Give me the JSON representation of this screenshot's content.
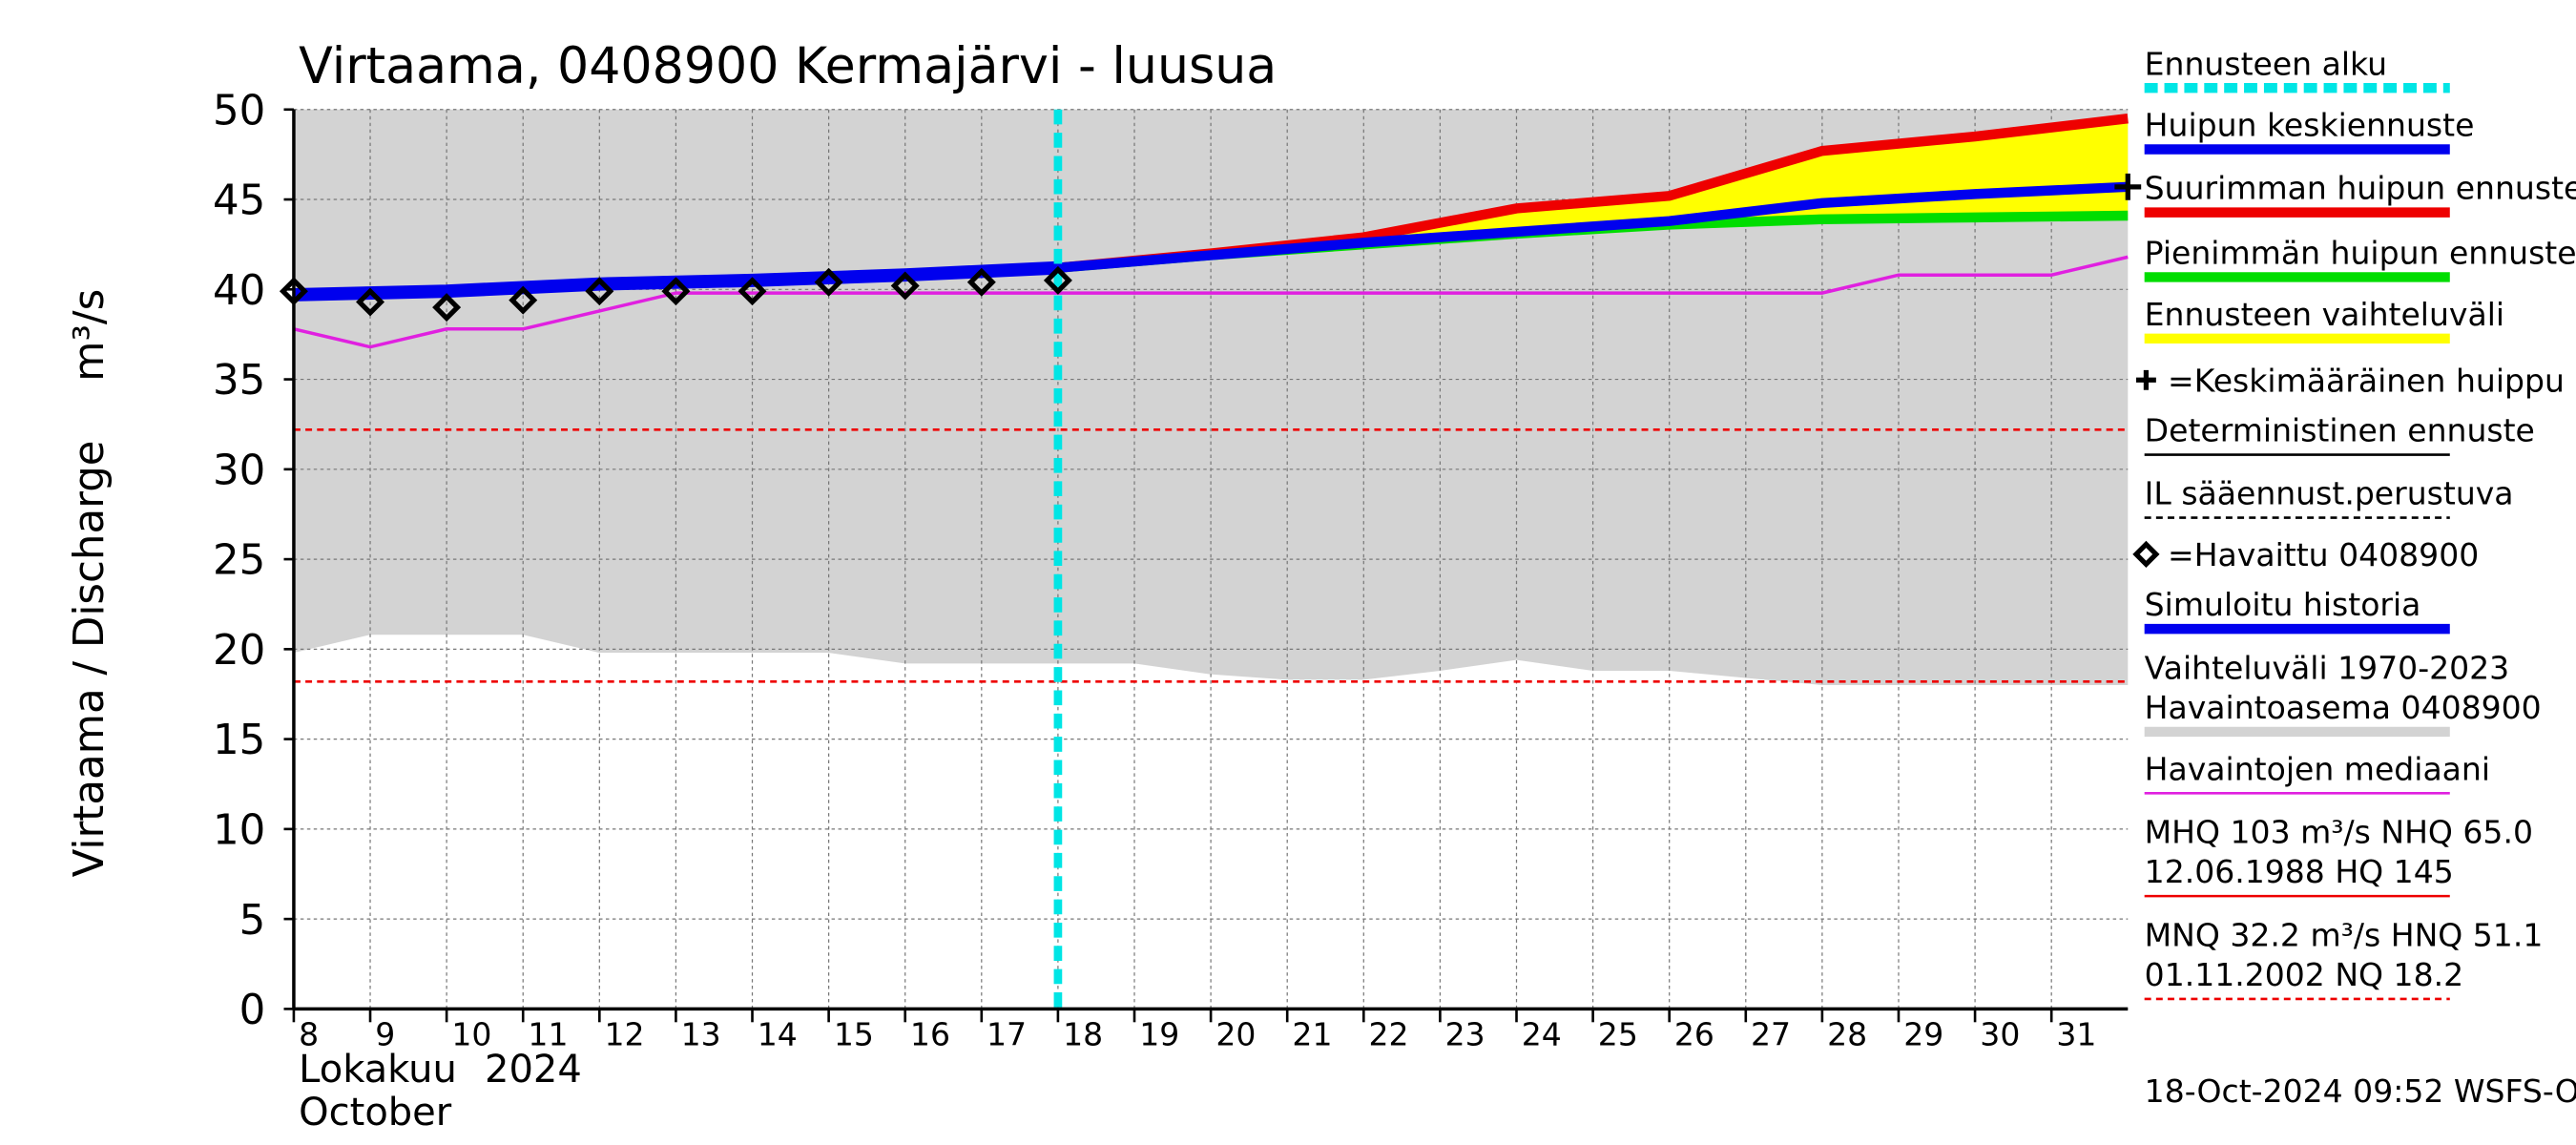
{
  "chart_data": {
    "type": "hydrograph",
    "title": "Virtaama, 0408900 Kermajärvi - luusua",
    "y_label": "Virtaama / Discharge",
    "y_unit": "m³/s",
    "x_label_month": "Lokakuu",
    "x_label_year": "2024",
    "x_label_en": "October",
    "footer": "18-Oct-2024 09:52 WSFS-O",
    "xlim": [
      8,
      32
    ],
    "xticks": [
      8,
      9,
      10,
      11,
      12,
      13,
      14,
      15,
      16,
      17,
      18,
      19,
      20,
      21,
      22,
      23,
      24,
      25,
      26,
      27,
      28,
      29,
      30,
      31
    ],
    "ylim": [
      0,
      50
    ],
    "yticks": [
      0,
      5,
      10,
      15,
      20,
      25,
      30,
      35,
      40,
      45,
      50
    ],
    "grid": true,
    "forecast_start": 18,
    "range_band": {
      "color": "#d3d3d3",
      "x": [
        8,
        9,
        10,
        11,
        12,
        13,
        14,
        15,
        16,
        17,
        18,
        19,
        20,
        21,
        22,
        23,
        24,
        25,
        26,
        27,
        28,
        29,
        30,
        31,
        32
      ],
      "low": [
        19.8,
        20.8,
        20.8,
        20.8,
        19.8,
        19.8,
        19.8,
        19.8,
        19.2,
        19.2,
        19.2,
        19.2,
        18.6,
        18.3,
        18.3,
        18.8,
        19.4,
        18.8,
        18.8,
        18.4,
        18.0,
        18.0,
        18.0,
        18.0,
        18.0
      ],
      "high": [
        50,
        50,
        50,
        50,
        50,
        50,
        50,
        50,
        50,
        50,
        50,
        50,
        50,
        50,
        50,
        50,
        50,
        50,
        50,
        50,
        50,
        50,
        50,
        50,
        50
      ]
    },
    "median": {
      "color": "#e020e0",
      "x": [
        8,
        9,
        10,
        11,
        12,
        13,
        14,
        15,
        16,
        17,
        18,
        19,
        20,
        21,
        22,
        23,
        24,
        25,
        26,
        27,
        28,
        29,
        30,
        31,
        32
      ],
      "values": [
        37.8,
        36.8,
        37.8,
        37.8,
        38.8,
        39.8,
        39.8,
        39.8,
        39.8,
        39.8,
        39.8,
        39.8,
        39.8,
        39.8,
        39.8,
        39.8,
        39.8,
        39.8,
        39.8,
        39.8,
        39.8,
        40.8,
        40.8,
        40.8,
        41.8
      ]
    },
    "forecast_x": [
      18,
      20,
      22,
      24,
      26,
      28,
      30,
      32
    ],
    "max_forecast": {
      "color": "#ee0000",
      "values": [
        41.2,
        42.0,
        42.9,
        44.5,
        45.2,
        47.7,
        48.5,
        49.5
      ]
    },
    "min_forecast": {
      "color": "#00dd00",
      "values": [
        41.2,
        41.9,
        42.5,
        43.1,
        43.6,
        43.9,
        44.0,
        44.1
      ]
    },
    "mean_forecast": {
      "color": "#0000ee",
      "values": [
        41.2,
        41.9,
        42.6,
        43.2,
        43.8,
        44.8,
        45.3,
        45.7
      ]
    },
    "band_color": "#ffff00",
    "history": {
      "color": "#0000ee",
      "x": [
        8,
        10,
        12,
        14,
        16,
        18
      ],
      "values": [
        39.7,
        39.9,
        40.3,
        40.5,
        40.8,
        41.2
      ]
    },
    "observed": {
      "x": [
        8,
        9,
        10,
        11,
        12,
        13,
        14,
        15,
        16,
        17,
        18
      ],
      "values": [
        39.9,
        39.3,
        39.0,
        39.4,
        39.9,
        39.9,
        39.9,
        40.4,
        40.2,
        40.4,
        40.5
      ]
    },
    "mean_peak": {
      "x": 32,
      "value": 45.7
    },
    "reference_lines": [
      {
        "value": 32.2,
        "color": "#ee0000"
      },
      {
        "value": 18.2,
        "color": "#ee0000"
      }
    ],
    "legend": [
      {
        "lines": [
          "Ennusteen alku"
        ],
        "color": "#00e5e5",
        "style": "thick-dashed"
      },
      {
        "lines": [
          "Huipun keskiennuste"
        ],
        "color": "#0000ee",
        "style": "thick"
      },
      {
        "lines": [
          "Suurimman huipun ennuste"
        ],
        "color": "#ee0000",
        "style": "thick"
      },
      {
        "lines": [
          "Pienimmän huipun ennuste"
        ],
        "color": "#00dd00",
        "style": "thick"
      },
      {
        "lines": [
          "Ennusteen vaihteluväli"
        ],
        "color": "#ffff00",
        "style": "thick"
      },
      {
        "lines": [
          "=Keskimääräinen huippu"
        ],
        "marker": "plus"
      },
      {
        "lines": [
          "Deterministinen ennuste"
        ],
        "color": "#000000",
        "style": "thin"
      },
      {
        "lines": [
          "IL sääennust.perustuva"
        ],
        "color": "#000000",
        "style": "thin-dashed"
      },
      {
        "lines": [
          "=Havaittu 0408900"
        ],
        "marker": "diamond"
      },
      {
        "lines": [
          "Simuloitu historia"
        ],
        "color": "#0000ee",
        "style": "thick"
      },
      {
        "lines": [
          "Vaihteluväli 1970-2023",
          "Havaintoasema 0408900"
        ],
        "color": "#d3d3d3",
        "style": "thick"
      },
      {
        "lines": [
          "Havaintojen mediaani"
        ],
        "color": "#e020e0",
        "style": "thin"
      },
      {
        "lines": [
          "MHQ  103 m³/s NHQ 65.0",
          "12.06.1988 HQ  145"
        ],
        "color": "#ee0000",
        "style": "thin"
      },
      {
        "lines": [
          "MNQ 32.2 m³/s HNQ 51.1",
          "01.11.2002 NQ 18.2"
        ],
        "color": "#ee0000",
        "style": "thin-dashed"
      }
    ]
  }
}
